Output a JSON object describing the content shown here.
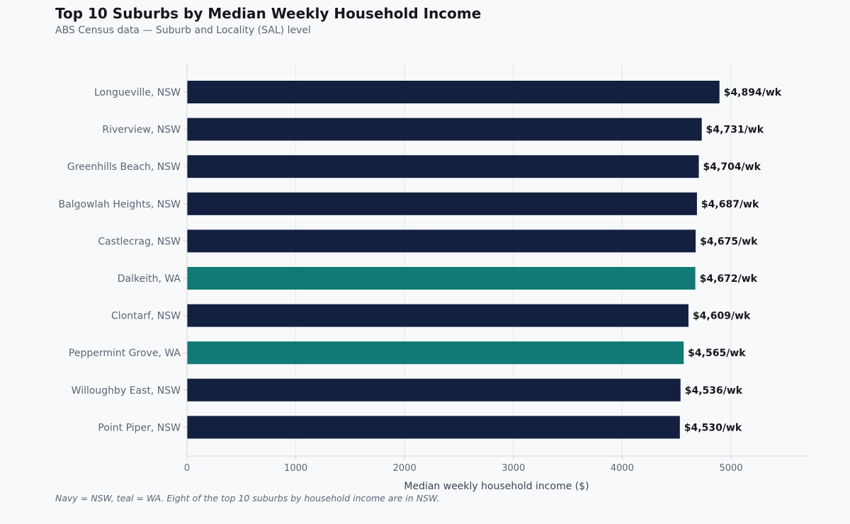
{
  "title": "Top 10 Suburbs by Median Weekly Household Income",
  "subtitle": "ABS Census data — Suburb and Locality (SAL) level",
  "footnote": "Navy = NSW, teal = WA. Eight of the top 10 suburbs by household income are in NSW.",
  "colors": {
    "NSW": "#13203f",
    "WA": "#117a74"
  },
  "chart_data": {
    "type": "bar",
    "orientation": "horizontal",
    "title": "Top 10 Suburbs by Median Weekly Household Income",
    "subtitle": "ABS Census data — Suburb and Locality (SAL) level",
    "xlabel": "Median weekly household income ($)",
    "ylabel": "",
    "xlim": [
      0,
      5700
    ],
    "xticks": [
      0,
      1000,
      2000,
      3000,
      4000,
      5000
    ],
    "grid": "vertical",
    "categories": [
      "Longueville, NSW",
      "Riverview, NSW",
      "Greenhills Beach, NSW",
      "Balgowlah Heights, NSW",
      "Castlecrag, NSW",
      "Dalkeith, WA",
      "Clontarf, NSW",
      "Peppermint Grove, WA",
      "Willoughby East, NSW",
      "Point Piper, NSW"
    ],
    "values": [
      4894,
      4731,
      4704,
      4687,
      4675,
      4672,
      4609,
      4565,
      4536,
      4530
    ],
    "data_labels": [
      "$4,894/wk",
      "$4,731/wk",
      "$4,704/wk",
      "$4,687/wk",
      "$4,675/wk",
      "$4,672/wk",
      "$4,609/wk",
      "$4,565/wk",
      "$4,536/wk",
      "$4,530/wk"
    ],
    "state": [
      "NSW",
      "NSW",
      "NSW",
      "NSW",
      "NSW",
      "WA",
      "NSW",
      "WA",
      "NSW",
      "NSW"
    ]
  }
}
